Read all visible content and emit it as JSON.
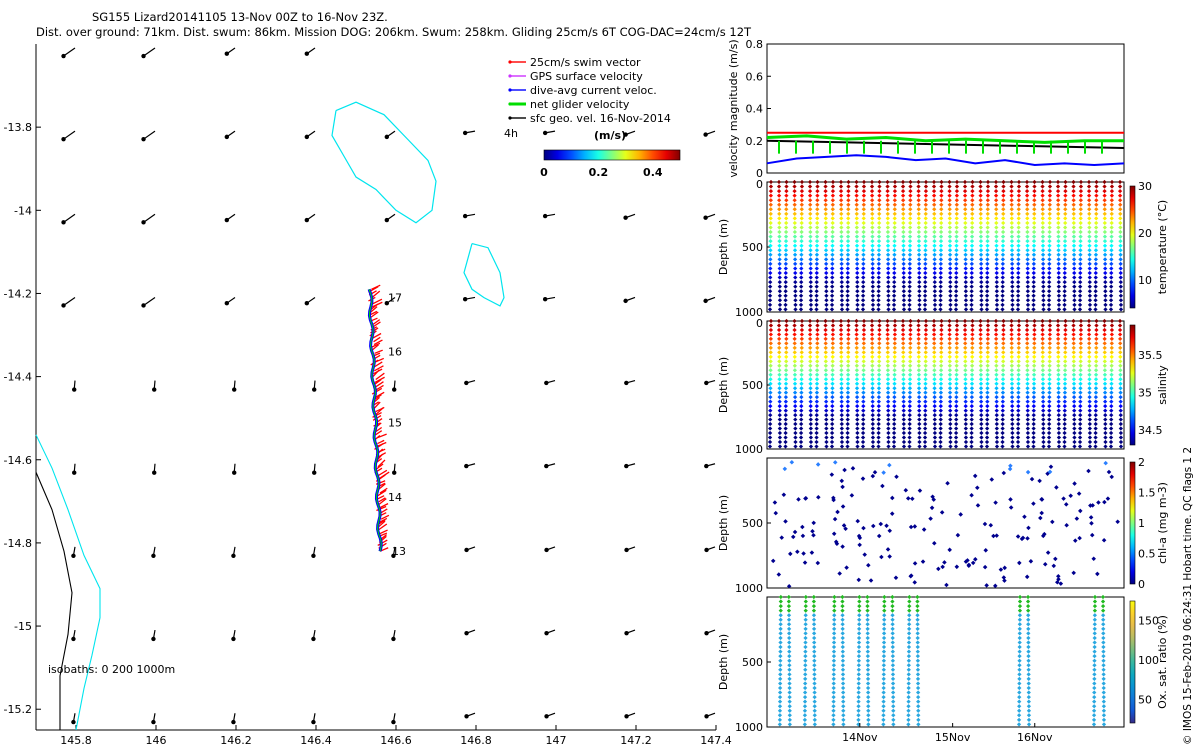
{
  "header": {
    "line1": "SG155 Lizard20141105 13-Nov 00Z to 16-Nov 23Z.",
    "line2": "Dist. over ground: 71km. Dist. swum: 86km. Mission DOG: 206km. Swum: 258km. Gliding 25cm/s 6T COG-DAC=24cm/s 12T"
  },
  "credit": "© IMOS 15-Feb-2019 06:24:31 Hobart time. QC flags 1  2",
  "colors": {
    "swim": "#ff0000",
    "gps": "#cc33ff",
    "dac": "#0000ff",
    "net": "#00dd00",
    "geo": "#000000",
    "reef": "#00e5ee",
    "isobath": "#000000"
  },
  "chart_data": [
    {
      "type": "scatter",
      "name": "map",
      "xlim": [
        145.7,
        147.4
      ],
      "ylim": [
        -15.25,
        -13.6
      ],
      "xticks": [
        "145.8",
        "146",
        "146.2",
        "146.4",
        "146.6",
        "146.8",
        "147",
        "147.2",
        "147.4"
      ],
      "xtick_values": [
        145.8,
        146.0,
        146.2,
        146.4,
        146.6,
        146.8,
        147.0,
        147.2,
        147.4
      ],
      "yticks": [
        "-13.8",
        "-14",
        "-14.2",
        "-14.4",
        "-14.6",
        "-14.8",
        "-15",
        "-15.2"
      ],
      "ytick_values": [
        -13.8,
        -14.0,
        -14.2,
        -14.4,
        -14.6,
        -14.8,
        -15.0,
        -15.2
      ],
      "legend": {
        "placement": "top-right",
        "entries": [
          {
            "label": "25cm/s swim vector",
            "color": "#ff0000"
          },
          {
            "label": "GPS surface velocity",
            "color": "#cc33ff"
          },
          {
            "label": "dive-avg current veloc.",
            "color": "#0000ff"
          },
          {
            "label": "net glider velocity",
            "color": "#00dd00"
          },
          {
            "label": "sfc geo. vel. 16-Nov-2014",
            "color": "#000000"
          }
        ]
      },
      "colorbar": {
        "label": "(m/s)",
        "ticks": [
          "0",
          "0.2",
          "0.4"
        ],
        "range": [
          0,
          0.5
        ]
      },
      "annotations": [
        "4h"
      ],
      "isobath_label": "isobaths: 0   200  1000m",
      "track_day_labels": [
        {
          "text": "17",
          "lon": 146.57,
          "lat": -14.21
        },
        {
          "text": "16",
          "lon": 146.57,
          "lat": -14.34
        },
        {
          "text": "15",
          "lon": 146.57,
          "lat": -14.51
        },
        {
          "text": "14",
          "lon": 146.57,
          "lat": -14.69
        },
        {
          "text": "13",
          "lon": 146.58,
          "lat": -14.82
        }
      ],
      "track": {
        "lon_start": 146.56,
        "lat_start": -14.82,
        "lon_end": 146.535,
        "lat_end": -14.19
      },
      "reef_outlines": [
        [
          [
            146.45,
            -13.76
          ],
          [
            146.5,
            -13.74
          ],
          [
            146.57,
            -13.77
          ],
          [
            146.63,
            -13.83
          ],
          [
            146.68,
            -13.88
          ],
          [
            146.7,
            -13.93
          ],
          [
            146.69,
            -14.0
          ],
          [
            146.65,
            -14.03
          ],
          [
            146.6,
            -14.0
          ],
          [
            146.55,
            -13.95
          ],
          [
            146.5,
            -13.92
          ],
          [
            146.47,
            -13.87
          ],
          [
            146.44,
            -13.82
          ],
          [
            146.45,
            -13.76
          ]
        ],
        [
          [
            146.79,
            -14.08
          ],
          [
            146.83,
            -14.09
          ],
          [
            146.86,
            -14.15
          ],
          [
            146.87,
            -14.21
          ],
          [
            146.86,
            -14.23
          ],
          [
            146.82,
            -14.21
          ],
          [
            146.79,
            -14.19
          ],
          [
            146.77,
            -14.15
          ],
          [
            146.79,
            -14.08
          ]
        ]
      ],
      "coast_outlines": [
        {
          "color": "cyan",
          "points": [
            [
              145.7,
              -14.54
            ],
            [
              145.74,
              -14.62
            ],
            [
              145.78,
              -14.72
            ],
            [
              145.82,
              -14.83
            ],
            [
              145.86,
              -14.91
            ],
            [
              145.86,
              -14.98
            ],
            [
              145.84,
              -15.07
            ],
            [
              145.82,
              -15.15
            ],
            [
              145.8,
              -15.25
            ]
          ]
        },
        {
          "color": "black",
          "points": [
            [
              145.7,
              -14.63
            ],
            [
              145.74,
              -14.72
            ],
            [
              145.77,
              -14.82
            ],
            [
              145.79,
              -14.92
            ],
            [
              145.78,
              -15.02
            ],
            [
              145.76,
              -15.12
            ],
            [
              145.76,
              -15.25
            ]
          ]
        }
      ]
    },
    {
      "type": "line",
      "name": "velocity",
      "ylabel": "velocity magnitude (m/s)",
      "ylim": [
        0,
        0.8
      ],
      "yticks": [
        "0",
        "0.2",
        "0.4",
        "0.6",
        "0.8"
      ],
      "ytick_values": [
        0,
        0.2,
        0.4,
        0.6,
        0.8
      ],
      "series": [
        {
          "color": "#ff0000",
          "values": [
            0.25,
            0.25
          ]
        },
        {
          "color": "#000000",
          "values": [
            0.2,
            0.155
          ]
        },
        {
          "color": "#00dd00",
          "values": [
            0.22,
            0.23,
            0.21,
            0.22,
            0.2,
            0.21,
            0.2,
            0.19,
            0.2,
            0.2
          ]
        },
        {
          "color": "#0000ff",
          "values": [
            0.06,
            0.09,
            0.1,
            0.11,
            0.1,
            0.08,
            0.09,
            0.06,
            0.08,
            0.05,
            0.06,
            0.05,
            0.06
          ]
        }
      ]
    },
    {
      "type": "scatter",
      "name": "temperature",
      "ylabel": "Depth (m)",
      "cbar_label": "temperature (°C)",
      "cbar_ticks": [
        "10",
        "20",
        "30"
      ],
      "cbar_range": [
        4,
        30
      ],
      "ylim": [
        1000,
        0
      ],
      "yticks": [
        "0",
        "500",
        "1000"
      ],
      "dives": 23,
      "profile": "temp"
    },
    {
      "type": "scatter",
      "name": "salinity",
      "ylabel": "Depth (m)",
      "cbar_label": "salinity",
      "cbar_ticks": [
        "34.5",
        "35",
        "35.5"
      ],
      "cbar_range": [
        34.3,
        35.9
      ],
      "ylim": [
        1000,
        0
      ],
      "yticks": [
        "0",
        "500",
        "1000"
      ],
      "dives": 23,
      "profile": "sal"
    },
    {
      "type": "scatter",
      "name": "chlorophyll",
      "ylabel": "Depth (m)",
      "cbar_label": "chl-a (mg m-3)",
      "cbar_ticks": [
        "0",
        "0.5",
        "1",
        "1.5",
        "2"
      ],
      "cbar_range": [
        0,
        2
      ],
      "ylim": [
        1000,
        0
      ],
      "yticks": [
        "500",
        "1000"
      ],
      "dives": 23,
      "profile": "chl"
    },
    {
      "type": "scatter",
      "name": "oxygen",
      "ylabel": "Depth (m)",
      "cbar_label": "Ox. sat. ratio (%)",
      "cbar_ticks": [
        "50",
        "100",
        "150"
      ],
      "cbar_range": [
        20,
        175
      ],
      "ylim": [
        1000,
        0
      ],
      "yticks": [
        "500",
        "1000"
      ],
      "dives": 9,
      "profile": "ox",
      "xticks": [
        "14Nov",
        "15Nov",
        "16Nov"
      ]
    }
  ]
}
